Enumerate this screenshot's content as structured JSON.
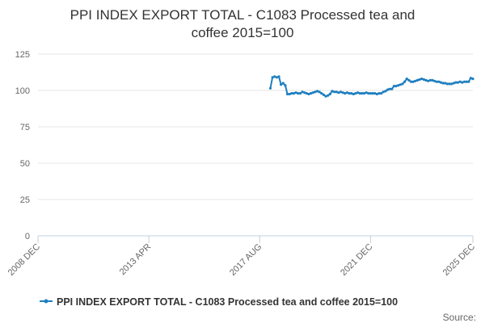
{
  "chart_data": {
    "type": "line",
    "title_lines": [
      "PPI INDEX EXPORT TOTAL - C1083 Processed tea and",
      "coffee 2015=100"
    ],
    "ylim": [
      0,
      125
    ],
    "y_ticks": [
      0,
      25,
      50,
      75,
      100,
      125
    ],
    "x_range": [
      "2008-12",
      "2025-12"
    ],
    "x_ticks": [
      {
        "date": "2008-12",
        "label": "2008 DEC"
      },
      {
        "date": "2013-04",
        "label": "2013 APR"
      },
      {
        "date": "2017-08",
        "label": "2017 AUG"
      },
      {
        "date": "2021-12",
        "label": "2021 DEC"
      },
      {
        "date": "2025-12",
        "label": "2025 DEC"
      }
    ],
    "grid": "horizontal",
    "legend_position": "bottom",
    "color": "#1f7fc0",
    "series": [
      {
        "name": "PPI INDEX EXPORT TOTAL - C1083 Processed tea and coffee 2015=100",
        "points": [
          [
            "2018-01",
            101.5
          ],
          [
            "2018-02",
            109.0
          ],
          [
            "2018-03",
            109.5
          ],
          [
            "2018-04",
            109.0
          ],
          [
            "2018-05",
            109.5
          ],
          [
            "2018-06",
            104.0
          ],
          [
            "2018-07",
            105.0
          ],
          [
            "2018-08",
            103.5
          ],
          [
            "2018-09",
            97.5
          ],
          [
            "2018-10",
            97.5
          ],
          [
            "2018-11",
            98.0
          ],
          [
            "2018-12",
            98.0
          ],
          [
            "2019-01",
            98.5
          ],
          [
            "2019-02",
            98.0
          ],
          [
            "2019-03",
            98.0
          ],
          [
            "2019-04",
            99.0
          ],
          [
            "2019-05",
            98.5
          ],
          [
            "2019-06",
            98.0
          ],
          [
            "2019-07",
            97.5
          ],
          [
            "2019-08",
            98.0
          ],
          [
            "2019-09",
            98.5
          ],
          [
            "2019-10",
            99.0
          ],
          [
            "2019-11",
            99.5
          ],
          [
            "2019-12",
            99.0
          ],
          [
            "2020-01",
            98.0
          ],
          [
            "2020-02",
            97.0
          ],
          [
            "2020-03",
            96.0
          ],
          [
            "2020-04",
            96.5
          ],
          [
            "2020-05",
            97.5
          ],
          [
            "2020-06",
            99.5
          ],
          [
            "2020-07",
            99.0
          ],
          [
            "2020-08",
            99.0
          ],
          [
            "2020-09",
            98.5
          ],
          [
            "2020-10",
            99.0
          ],
          [
            "2020-11",
            98.5
          ],
          [
            "2020-12",
            98.0
          ],
          [
            "2021-01",
            98.5
          ],
          [
            "2021-02",
            98.0
          ],
          [
            "2021-03",
            98.0
          ],
          [
            "2021-04",
            97.5
          ],
          [
            "2021-05",
            98.0
          ],
          [
            "2021-06",
            98.5
          ],
          [
            "2021-07",
            98.0
          ],
          [
            "2021-08",
            98.0
          ],
          [
            "2021-09",
            98.0
          ],
          [
            "2021-10",
            98.5
          ],
          [
            "2021-11",
            98.0
          ],
          [
            "2021-12",
            98.0
          ],
          [
            "2022-01",
            98.0
          ],
          [
            "2022-02",
            98.0
          ],
          [
            "2022-03",
            97.5
          ],
          [
            "2022-04",
            98.0
          ],
          [
            "2022-05",
            98.0
          ],
          [
            "2022-06",
            99.0
          ],
          [
            "2022-07",
            99.5
          ],
          [
            "2022-08",
            100.5
          ],
          [
            "2022-09",
            101.0
          ],
          [
            "2022-10",
            101.0
          ],
          [
            "2022-11",
            103.0
          ],
          [
            "2022-12",
            103.0
          ],
          [
            "2023-01",
            103.5
          ],
          [
            "2023-02",
            104.0
          ],
          [
            "2023-03",
            104.5
          ],
          [
            "2023-04",
            106.0
          ],
          [
            "2023-05",
            108.0
          ],
          [
            "2023-06",
            107.0
          ],
          [
            "2023-07",
            106.0
          ],
          [
            "2023-08",
            106.0
          ],
          [
            "2023-09",
            106.5
          ],
          [
            "2023-10",
            107.0
          ],
          [
            "2023-11",
            107.5
          ],
          [
            "2023-12",
            108.0
          ],
          [
            "2024-01",
            107.5
          ],
          [
            "2024-02",
            107.0
          ],
          [
            "2024-03",
            106.5
          ],
          [
            "2024-04",
            107.0
          ],
          [
            "2024-05",
            107.0
          ],
          [
            "2024-06",
            106.5
          ],
          [
            "2024-07",
            106.0
          ],
          [
            "2024-08",
            106.0
          ],
          [
            "2024-09",
            105.5
          ],
          [
            "2024-10",
            105.0
          ],
          [
            "2024-11",
            105.0
          ],
          [
            "2024-12",
            104.5
          ],
          [
            "2025-01",
            104.5
          ],
          [
            "2025-02",
            104.5
          ],
          [
            "2025-03",
            105.0
          ],
          [
            "2025-04",
            105.5
          ],
          [
            "2025-05",
            105.5
          ],
          [
            "2025-06",
            106.0
          ],
          [
            "2025-07",
            105.5
          ],
          [
            "2025-08",
            106.0
          ],
          [
            "2025-09",
            106.0
          ],
          [
            "2025-10",
            106.0
          ],
          [
            "2025-11",
            108.5
          ],
          [
            "2025-12",
            108.0
          ]
        ]
      }
    ],
    "source": "Source:"
  }
}
